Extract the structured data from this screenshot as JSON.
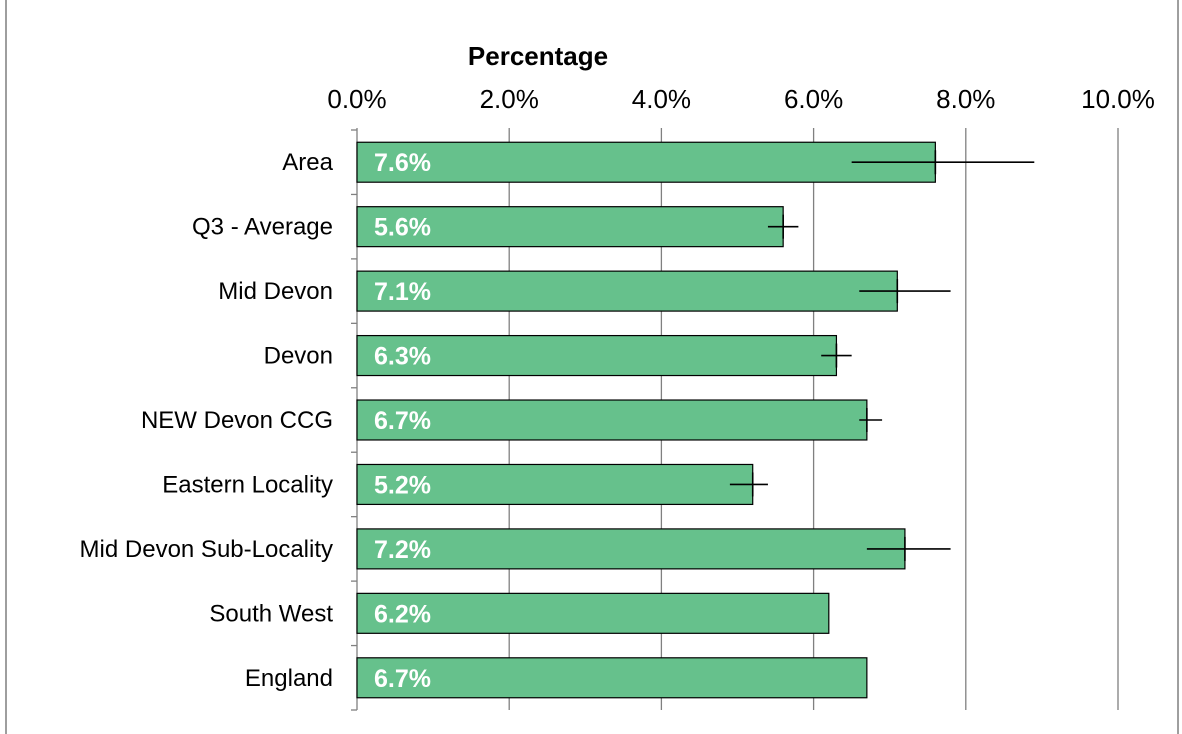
{
  "chart_data": {
    "type": "bar",
    "orientation": "horizontal",
    "title": "",
    "xlabel": "Percentage",
    "ylabel": "",
    "xlim": [
      0,
      10
    ],
    "x_tick_labels": [
      "0.0%",
      "2.0%",
      "4.0%",
      "6.0%",
      "8.0%",
      "10.0%"
    ],
    "x_axis_position": "top",
    "grid": true,
    "categories": [
      "Area",
      "Q3 - Average",
      "Mid Devon",
      "Devon",
      "NEW Devon CCG",
      "Eastern Locality",
      "Mid Devon Sub-Locality",
      "South West",
      "England"
    ],
    "values": [
      7.6,
      5.6,
      7.1,
      6.3,
      6.7,
      5.2,
      7.2,
      6.2,
      6.7
    ],
    "data_labels": [
      "7.6%",
      "5.6%",
      "7.1%",
      "6.3%",
      "6.7%",
      "5.2%",
      "7.2%",
      "6.2%",
      "6.7%"
    ],
    "error_bars": [
      {
        "low": 6.5,
        "high": 8.9
      },
      {
        "low": 5.4,
        "high": 5.8
      },
      {
        "low": 6.6,
        "high": 7.8
      },
      {
        "low": 6.1,
        "high": 6.5
      },
      {
        "low": 6.6,
        "high": 6.9
      },
      {
        "low": 4.9,
        "high": 5.4
      },
      {
        "low": 6.7,
        "high": 7.8
      },
      null,
      null
    ],
    "bar_color": "#66c18c",
    "bar_stroke": "#000000",
    "grid_color": "#808080"
  }
}
